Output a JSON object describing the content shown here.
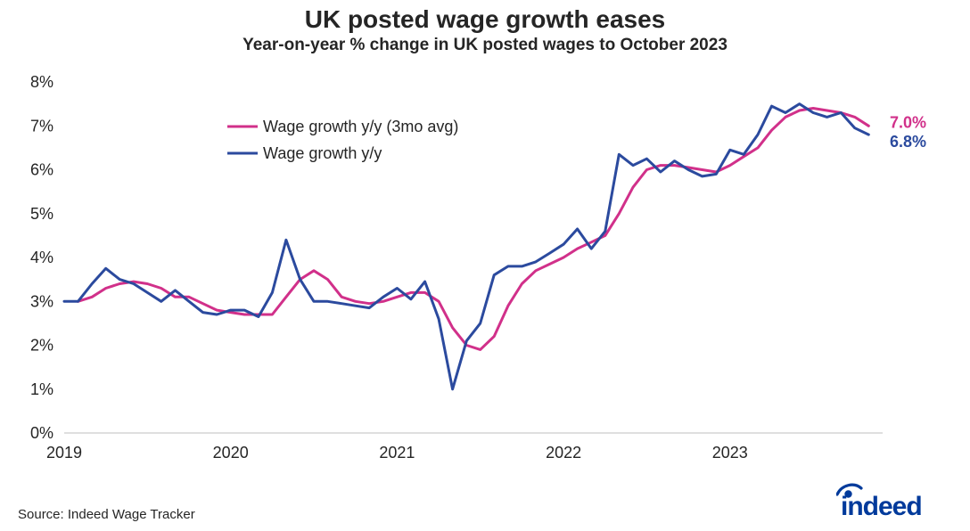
{
  "title": "UK posted wage growth eases",
  "subtitle": "Year-on-year % change in UK posted wages to October 2023",
  "source": "Source: Indeed Wage Tracker",
  "logo_text": "indeed",
  "chart": {
    "type": "line",
    "background_color": "#ffffff",
    "baseline_color": "#bfbfbf",
    "x": {
      "min": 2019.0,
      "max": 2023.917,
      "ticks": [
        2019,
        2020,
        2021,
        2022,
        2023
      ],
      "tick_labels": [
        "2019",
        "2020",
        "2021",
        "2022",
        "2023"
      ]
    },
    "y": {
      "min": 0,
      "max": 8,
      "ticks": [
        0,
        1,
        2,
        3,
        4,
        5,
        6,
        7,
        8
      ],
      "tick_labels": [
        "0%",
        "1%",
        "2%",
        "3%",
        "4%",
        "5%",
        "6%",
        "7%",
        "8%"
      ]
    },
    "legend": {
      "x": 235,
      "y_top": 58,
      "line_gap": 30,
      "swatch_len": 34
    },
    "series": [
      {
        "id": "3mo",
        "label": "Wage growth y/y (3mo avg)",
        "color": "#d1308a",
        "width": 3,
        "end_label": "7.0%",
        "end_label_color": "#d1308a",
        "data": [
          [
            2019.083,
            3.0
          ],
          [
            2019.167,
            3.1
          ],
          [
            2019.25,
            3.3
          ],
          [
            2019.333,
            3.4
          ],
          [
            2019.417,
            3.45
          ],
          [
            2019.5,
            3.4
          ],
          [
            2019.583,
            3.3
          ],
          [
            2019.667,
            3.1
          ],
          [
            2019.75,
            3.1
          ],
          [
            2019.833,
            2.95
          ],
          [
            2019.917,
            2.8
          ],
          [
            2020.0,
            2.75
          ],
          [
            2020.083,
            2.7
          ],
          [
            2020.167,
            2.7
          ],
          [
            2020.25,
            2.7
          ],
          [
            2020.333,
            3.1
          ],
          [
            2020.417,
            3.5
          ],
          [
            2020.5,
            3.7
          ],
          [
            2020.583,
            3.5
          ],
          [
            2020.667,
            3.1
          ],
          [
            2020.75,
            3.0
          ],
          [
            2020.833,
            2.95
          ],
          [
            2020.917,
            3.0
          ],
          [
            2021.0,
            3.1
          ],
          [
            2021.083,
            3.2
          ],
          [
            2021.167,
            3.2
          ],
          [
            2021.25,
            3.0
          ],
          [
            2021.333,
            2.4
          ],
          [
            2021.417,
            2.0
          ],
          [
            2021.5,
            1.9
          ],
          [
            2021.583,
            2.2
          ],
          [
            2021.667,
            2.9
          ],
          [
            2021.75,
            3.4
          ],
          [
            2021.833,
            3.7
          ],
          [
            2021.917,
            3.85
          ],
          [
            2022.0,
            4.0
          ],
          [
            2022.083,
            4.2
          ],
          [
            2022.167,
            4.35
          ],
          [
            2022.25,
            4.5
          ],
          [
            2022.333,
            5.0
          ],
          [
            2022.417,
            5.6
          ],
          [
            2022.5,
            6.0
          ],
          [
            2022.583,
            6.1
          ],
          [
            2022.667,
            6.1
          ],
          [
            2022.75,
            6.05
          ],
          [
            2022.833,
            6.0
          ],
          [
            2022.917,
            5.95
          ],
          [
            2023.0,
            6.1
          ],
          [
            2023.083,
            6.3
          ],
          [
            2023.167,
            6.5
          ],
          [
            2023.25,
            6.9
          ],
          [
            2023.333,
            7.2
          ],
          [
            2023.417,
            7.35
          ],
          [
            2023.5,
            7.4
          ],
          [
            2023.583,
            7.35
          ],
          [
            2023.667,
            7.3
          ],
          [
            2023.75,
            7.2
          ],
          [
            2023.833,
            7.0
          ]
        ]
      },
      {
        "id": "yy",
        "label": "Wage growth y/y",
        "color": "#2b4a9e",
        "width": 3,
        "end_label": "6.8%",
        "end_label_color": "#2b4a9e",
        "data": [
          [
            2019.0,
            3.0
          ],
          [
            2019.083,
            3.0
          ],
          [
            2019.167,
            3.4
          ],
          [
            2019.25,
            3.75
          ],
          [
            2019.333,
            3.5
          ],
          [
            2019.417,
            3.4
          ],
          [
            2019.5,
            3.2
          ],
          [
            2019.583,
            3.0
          ],
          [
            2019.667,
            3.25
          ],
          [
            2019.75,
            3.0
          ],
          [
            2019.833,
            2.75
          ],
          [
            2019.917,
            2.7
          ],
          [
            2020.0,
            2.8
          ],
          [
            2020.083,
            2.8
          ],
          [
            2020.167,
            2.65
          ],
          [
            2020.25,
            3.2
          ],
          [
            2020.333,
            4.4
          ],
          [
            2020.417,
            3.5
          ],
          [
            2020.5,
            3.0
          ],
          [
            2020.583,
            3.0
          ],
          [
            2020.667,
            2.95
          ],
          [
            2020.75,
            2.9
          ],
          [
            2020.833,
            2.85
          ],
          [
            2020.917,
            3.1
          ],
          [
            2021.0,
            3.3
          ],
          [
            2021.083,
            3.05
          ],
          [
            2021.167,
            3.45
          ],
          [
            2021.25,
            2.6
          ],
          [
            2021.333,
            1.0
          ],
          [
            2021.417,
            2.1
          ],
          [
            2021.5,
            2.5
          ],
          [
            2021.583,
            3.6
          ],
          [
            2021.667,
            3.8
          ],
          [
            2021.75,
            3.8
          ],
          [
            2021.833,
            3.9
          ],
          [
            2021.917,
            4.1
          ],
          [
            2022.0,
            4.3
          ],
          [
            2022.083,
            4.65
          ],
          [
            2022.167,
            4.2
          ],
          [
            2022.25,
            4.6
          ],
          [
            2022.333,
            6.35
          ],
          [
            2022.417,
            6.1
          ],
          [
            2022.5,
            6.25
          ],
          [
            2022.583,
            5.95
          ],
          [
            2022.667,
            6.2
          ],
          [
            2022.75,
            6.0
          ],
          [
            2022.833,
            5.85
          ],
          [
            2022.917,
            5.9
          ],
          [
            2023.0,
            6.45
          ],
          [
            2023.083,
            6.35
          ],
          [
            2023.167,
            6.8
          ],
          [
            2023.25,
            7.45
          ],
          [
            2023.333,
            7.3
          ],
          [
            2023.417,
            7.5
          ],
          [
            2023.5,
            7.3
          ],
          [
            2023.583,
            7.2
          ],
          [
            2023.667,
            7.3
          ],
          [
            2023.75,
            6.95
          ],
          [
            2023.833,
            6.8
          ]
        ]
      }
    ]
  },
  "logo_color": "#003a9b"
}
